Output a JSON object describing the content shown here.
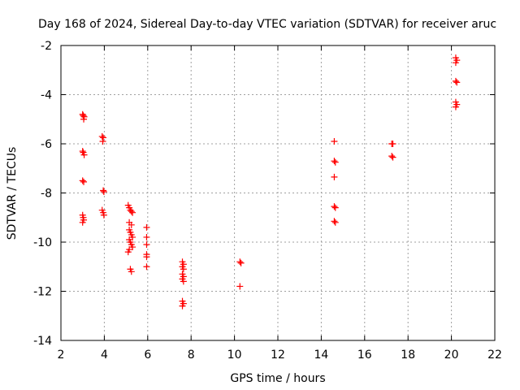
{
  "chart_data": {
    "type": "scatter",
    "title": "Day 168 of 2024, Sidereal Day-to-day VTEC variation (SDTVAR) for receiver aruc",
    "xlabel": "GPS time / hours",
    "ylabel": "SDTVAR / TECUs",
    "xlim": [
      2,
      22
    ],
    "ylim": [
      -14,
      -2
    ],
    "xticks": [
      2,
      4,
      6,
      8,
      10,
      12,
      14,
      16,
      18,
      20,
      22
    ],
    "yticks": [
      -2,
      -4,
      -6,
      -8,
      -10,
      -12,
      -14
    ],
    "x_tick_labels": [
      "2",
      "4",
      "6",
      "8",
      "10",
      "12",
      "14",
      "16",
      "18",
      "20",
      "22"
    ],
    "y_tick_labels": [
      "-2",
      "-4",
      "-6",
      "-8",
      "-10",
      "-12",
      "-14"
    ],
    "grid": true,
    "marker": "plus",
    "color": "#ff0000",
    "points": [
      [
        3.0,
        -4.8
      ],
      [
        3.03,
        -4.85
      ],
      [
        3.07,
        -4.9
      ],
      [
        3.05,
        -5.0
      ],
      [
        3.0,
        -6.3
      ],
      [
        3.03,
        -6.35
      ],
      [
        3.07,
        -6.45
      ],
      [
        3.0,
        -7.5
      ],
      [
        3.05,
        -7.55
      ],
      [
        3.0,
        -8.9
      ],
      [
        3.03,
        -9.0
      ],
      [
        3.05,
        -9.1
      ],
      [
        3.0,
        -9.2
      ],
      [
        3.9,
        -5.7
      ],
      [
        3.95,
        -5.75
      ],
      [
        3.93,
        -5.9
      ],
      [
        3.95,
        -7.9
      ],
      [
        3.98,
        -7.95
      ],
      [
        3.9,
        -8.7
      ],
      [
        3.95,
        -8.8
      ],
      [
        3.98,
        -8.9
      ],
      [
        5.1,
        -8.5
      ],
      [
        5.15,
        -8.6
      ],
      [
        5.2,
        -8.7
      ],
      [
        5.25,
        -8.75
      ],
      [
        5.3,
        -8.8
      ],
      [
        5.15,
        -9.2
      ],
      [
        5.25,
        -9.3
      ],
      [
        5.15,
        -9.5
      ],
      [
        5.2,
        -9.6
      ],
      [
        5.25,
        -9.7
      ],
      [
        5.3,
        -9.8
      ],
      [
        5.15,
        -9.9
      ],
      [
        5.2,
        -10.0
      ],
      [
        5.25,
        -10.1
      ],
      [
        5.3,
        -10.2
      ],
      [
        5.15,
        -10.3
      ],
      [
        5.1,
        -10.4
      ],
      [
        5.2,
        -11.1
      ],
      [
        5.25,
        -11.2
      ],
      [
        5.95,
        -9.4
      ],
      [
        5.95,
        -9.8
      ],
      [
        5.95,
        -10.1
      ],
      [
        5.95,
        -10.5
      ],
      [
        5.95,
        -10.6
      ],
      [
        5.95,
        -11.0
      ],
      [
        7.6,
        -10.8
      ],
      [
        7.65,
        -10.9
      ],
      [
        7.6,
        -11.0
      ],
      [
        7.65,
        -11.1
      ],
      [
        7.6,
        -11.3
      ],
      [
        7.65,
        -11.4
      ],
      [
        7.6,
        -11.5
      ],
      [
        7.65,
        -11.6
      ],
      [
        7.6,
        -12.4
      ],
      [
        7.65,
        -12.5
      ],
      [
        7.6,
        -12.6
      ],
      [
        10.25,
        -10.8
      ],
      [
        10.3,
        -10.85
      ],
      [
        10.25,
        -11.8
      ],
      [
        14.6,
        -5.9
      ],
      [
        14.6,
        -6.7
      ],
      [
        14.65,
        -6.75
      ],
      [
        14.6,
        -7.35
      ],
      [
        14.6,
        -8.55
      ],
      [
        14.65,
        -8.6
      ],
      [
        14.6,
        -9.15
      ],
      [
        14.65,
        -9.2
      ],
      [
        17.25,
        -6.0
      ],
      [
        17.3,
        -6.0
      ],
      [
        17.25,
        -6.5
      ],
      [
        17.3,
        -6.55
      ],
      [
        20.2,
        -2.5
      ],
      [
        20.25,
        -2.6
      ],
      [
        20.2,
        -2.7
      ],
      [
        20.2,
        -3.45
      ],
      [
        20.25,
        -3.5
      ],
      [
        20.2,
        -4.3
      ],
      [
        20.25,
        -4.4
      ],
      [
        20.2,
        -4.5
      ]
    ]
  }
}
